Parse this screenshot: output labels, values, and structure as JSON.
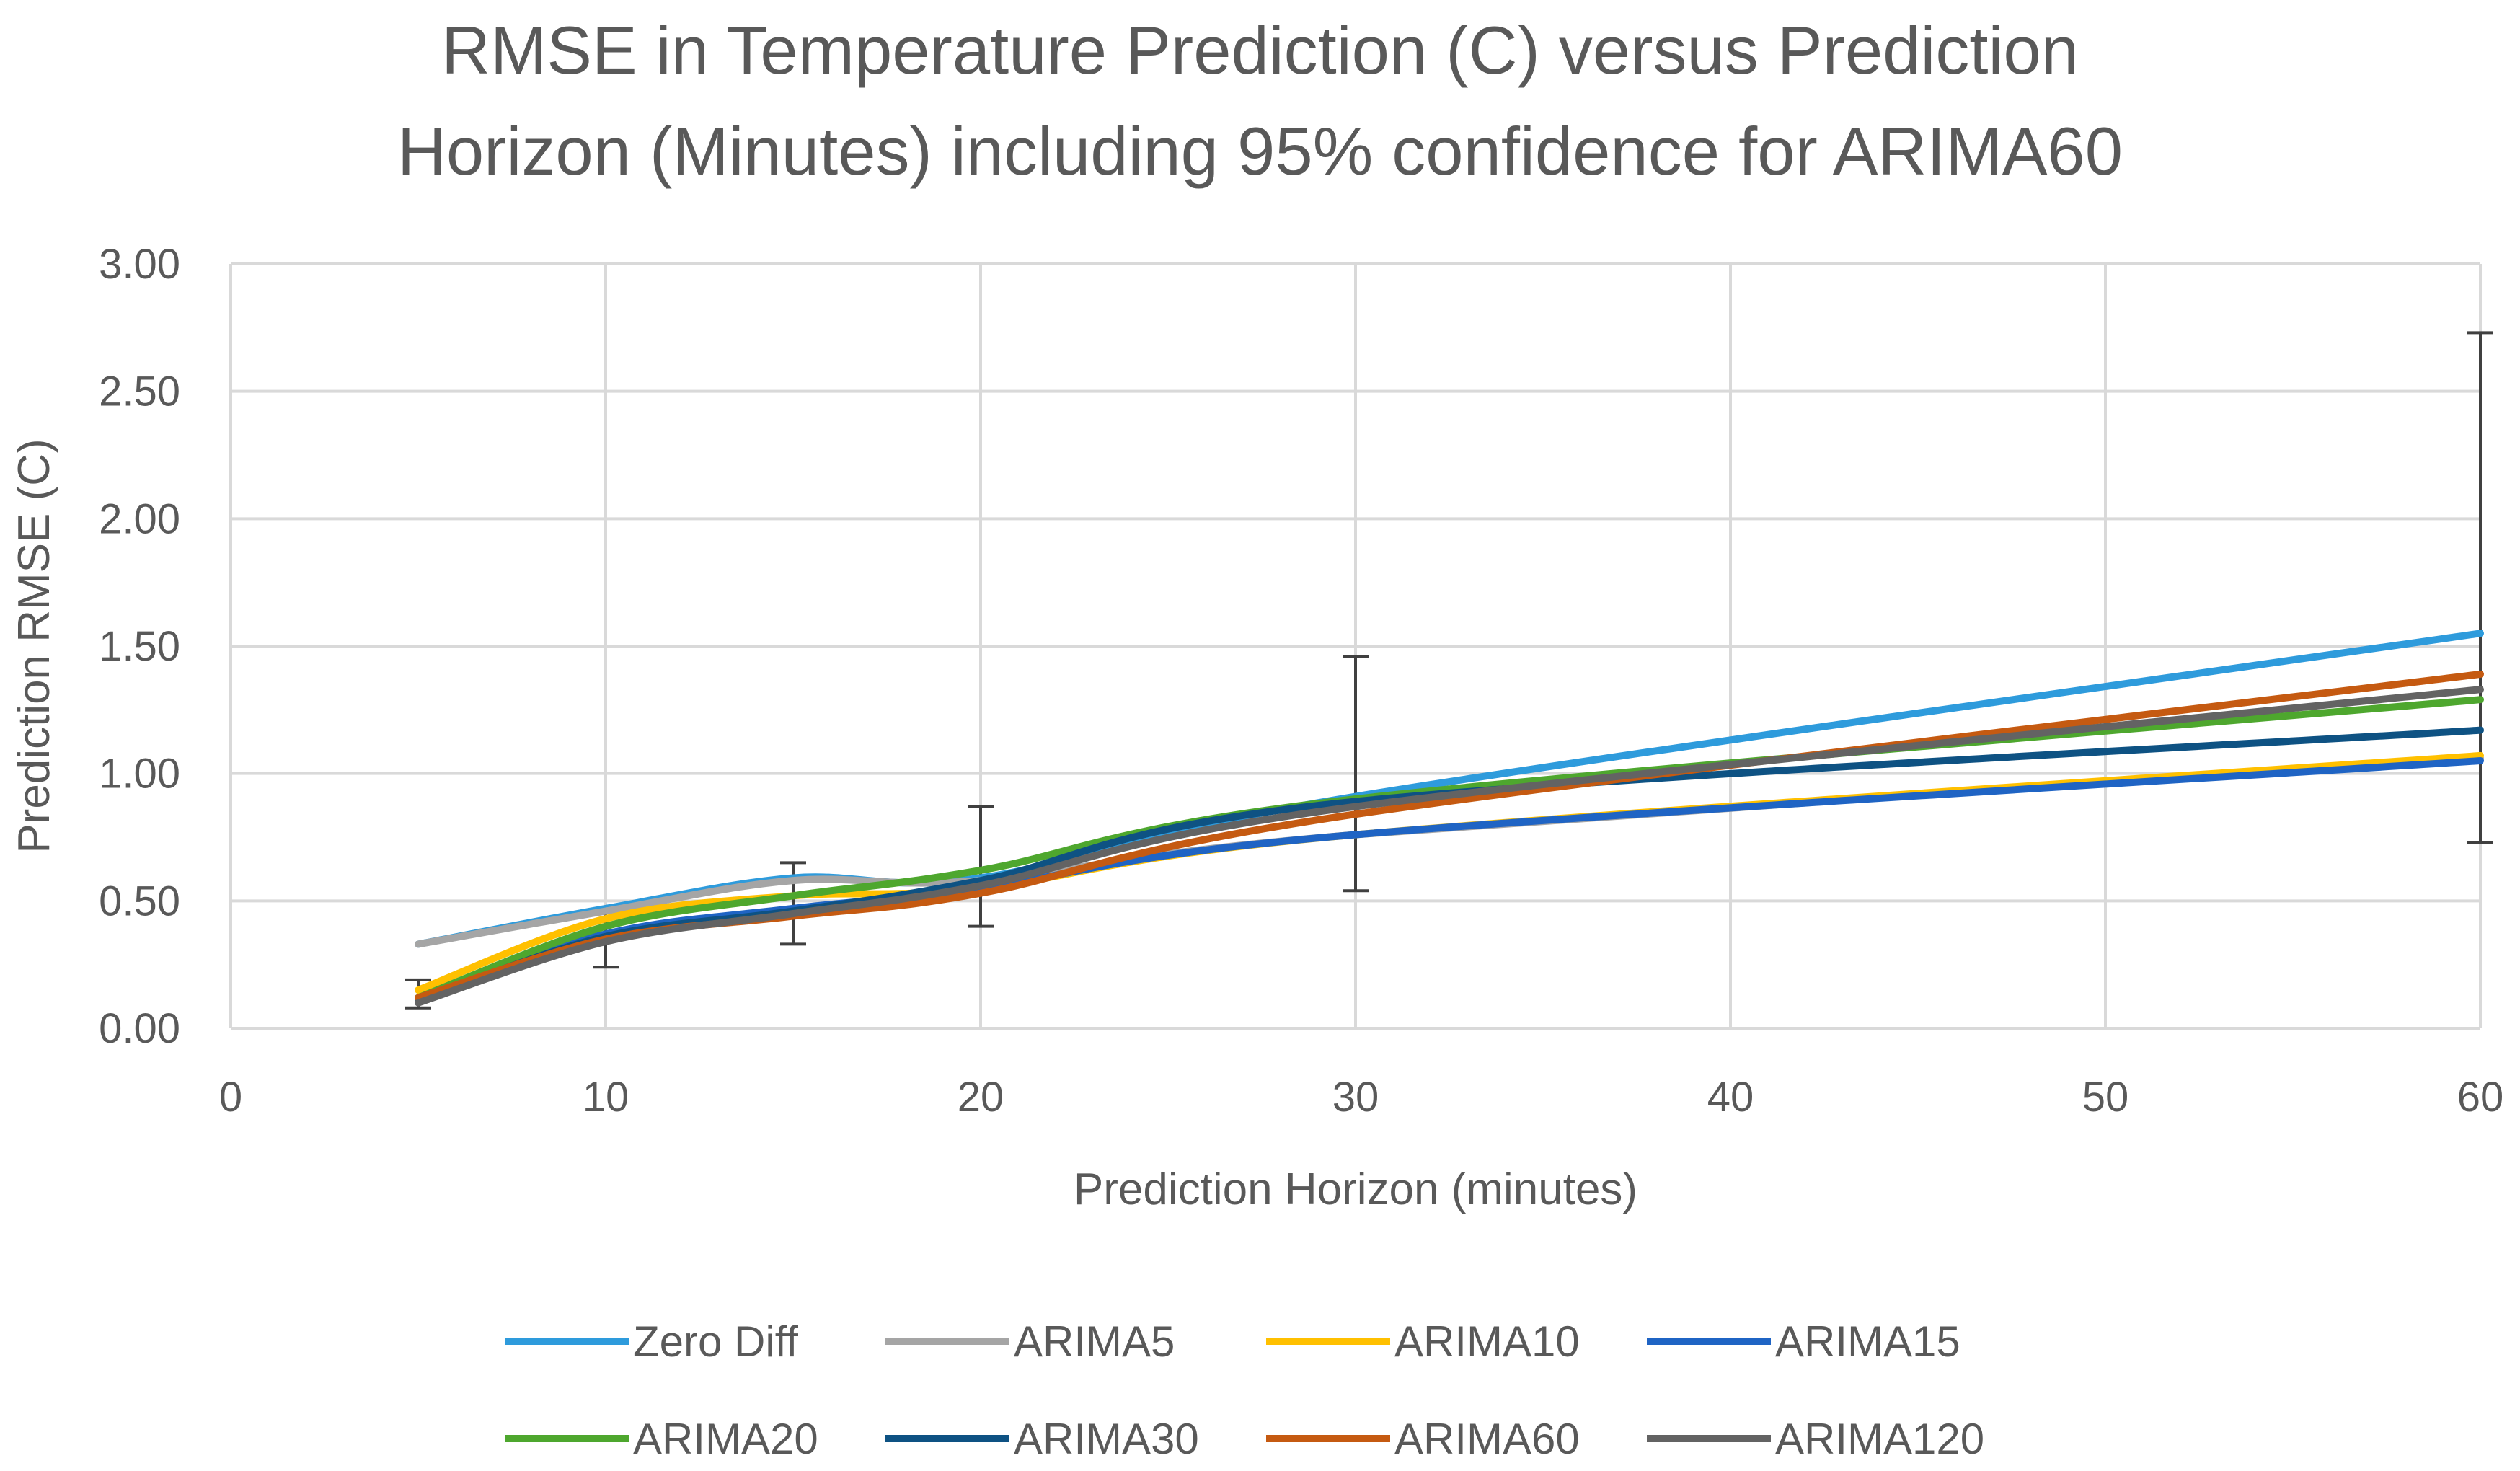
{
  "chart_data": {
    "type": "line",
    "title_lines": [
      "RMSE in Temperature Prediction (C) versus  Prediction",
      "Horizon (Minutes) including 95% confidence for ARIMA60"
    ],
    "xlabel": "Prediction Horizon (minutes)",
    "ylabel": "Prediction RMSE (C)",
    "xlim": [
      0,
      60
    ],
    "ylim": [
      0,
      3
    ],
    "x_ticks": [
      "0",
      "10",
      "20",
      "30",
      "40",
      "50",
      "60"
    ],
    "y_ticks": [
      "0.00",
      "0.50",
      "1.00",
      "1.50",
      "2.00",
      "2.50",
      "3.00"
    ],
    "grid": true,
    "legend_position": "bottom",
    "x": [
      5,
      10,
      15,
      20,
      30,
      60
    ],
    "series": [
      {
        "name": "Zero Diff",
        "color": "#2E9BDC",
        "values": [
          0.33,
          0.47,
          0.59,
          0.59,
          0.91,
          1.55
        ]
      },
      {
        "name": "ARIMA5",
        "color": "#A5A5A5",
        "values": [
          0.33,
          0.46,
          0.58,
          0.58,
          0.76,
          1.06
        ]
      },
      {
        "name": "ARIMA10",
        "color": "#FFC000",
        "values": [
          0.15,
          0.43,
          0.52,
          0.55,
          0.76,
          1.07
        ]
      },
      {
        "name": "ARIMA15",
        "color": "#1F64C4",
        "values": [
          0.12,
          0.37,
          0.47,
          0.55,
          0.76,
          1.05
        ]
      },
      {
        "name": "ARIMA20",
        "color": "#4EA72E",
        "values": [
          0.12,
          0.4,
          0.52,
          0.62,
          0.9,
          1.29
        ]
      },
      {
        "name": "ARIMA30",
        "color": "#0E5283",
        "values": [
          0.11,
          0.36,
          0.46,
          0.58,
          0.89,
          1.17
        ]
      },
      {
        "name": "ARIMA60",
        "color": "#C55A11",
        "values": [
          0.12,
          0.35,
          0.44,
          0.53,
          0.84,
          1.39
        ]
      },
      {
        "name": "ARIMA120",
        "color": "#636363",
        "values": [
          0.1,
          0.34,
          0.45,
          0.56,
          0.87,
          1.33
        ]
      }
    ],
    "error_bars": {
      "series": "ARIMA60",
      "color": "#404040",
      "x": [
        5,
        10,
        15,
        20,
        30,
        60
      ],
      "center": [
        0.14,
        0.34,
        0.49,
        0.63,
        1.0,
        1.73
      ],
      "lower": [
        0.08,
        0.24,
        0.33,
        0.4,
        0.54,
        0.73
      ],
      "upper": [
        0.19,
        0.46,
        0.65,
        0.87,
        1.46,
        2.73
      ]
    }
  }
}
